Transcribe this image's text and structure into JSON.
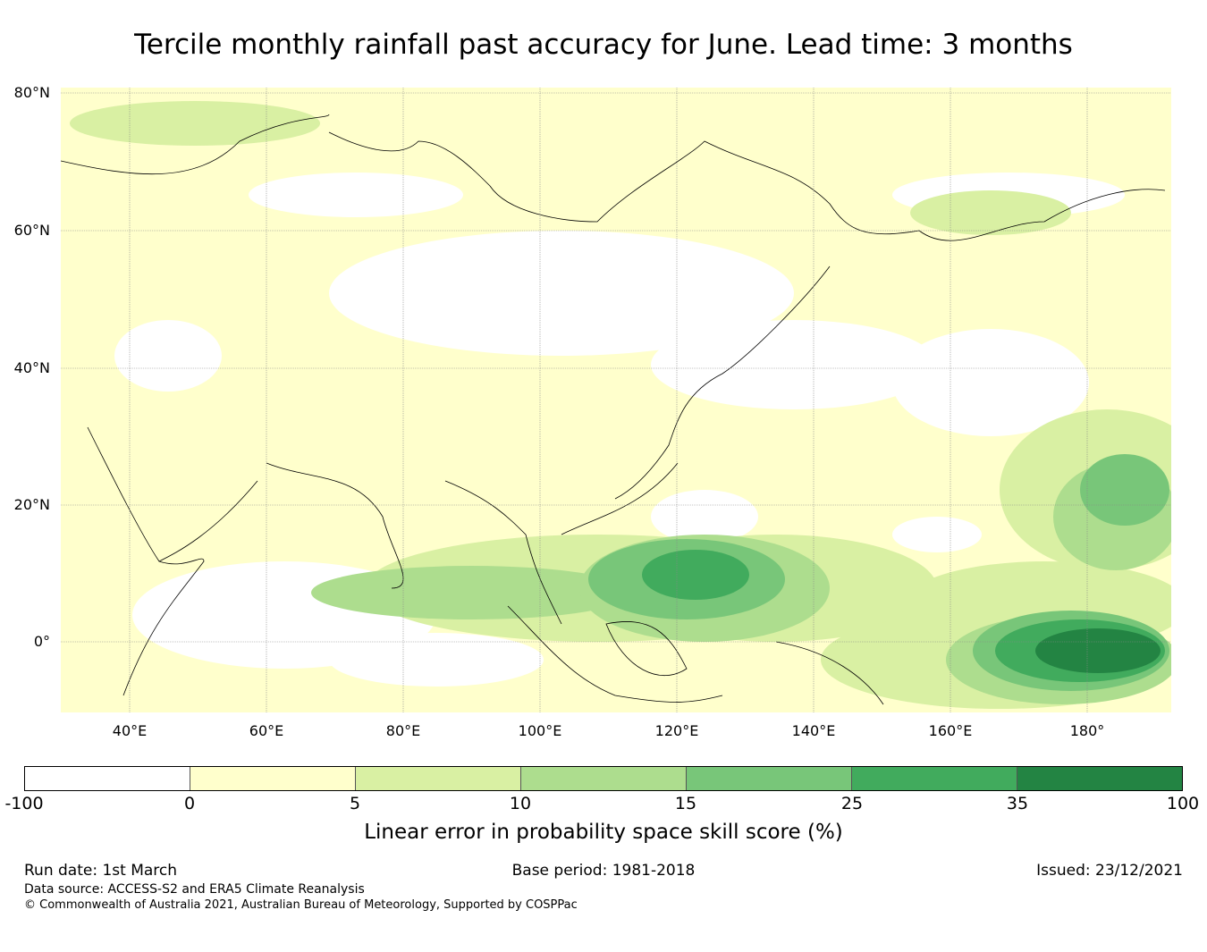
{
  "title": "Tercile monthly rainfall past accuracy for June. Lead time: 3 months",
  "map": {
    "lat_labels": [
      "80°N",
      "60°N",
      "40°N",
      "20°N",
      "0°"
    ],
    "lon_labels": [
      "40°E",
      "60°E",
      "80°E",
      "100°E",
      "120°E",
      "140°E",
      "160°E",
      "180°"
    ],
    "extent_lon": [
      30,
      192
    ],
    "extent_lat": [
      -10,
      81
    ]
  },
  "colorbar": {
    "label": "Linear error in probability space skill score (%)",
    "ticks": [
      "-100",
      "0",
      "5",
      "10",
      "15",
      "25",
      "35",
      "100"
    ],
    "colors": [
      "#ffffff",
      "#ffffcc",
      "#d9f0a3",
      "#addd8e",
      "#78c679",
      "#41ab5d",
      "#238443"
    ]
  },
  "footer": {
    "run_date": "Run date: 1st March",
    "base_period": "Base period: 1981-2018",
    "issued": "Issued: 23/12/2021",
    "data_source": "Data source: ACCESS-S2 and ERA5 Climate Reanalysis",
    "copyright": "© Commonwealth of Australia 2021, Australian Bureau of Meteorology, Supported by COSPPac"
  }
}
